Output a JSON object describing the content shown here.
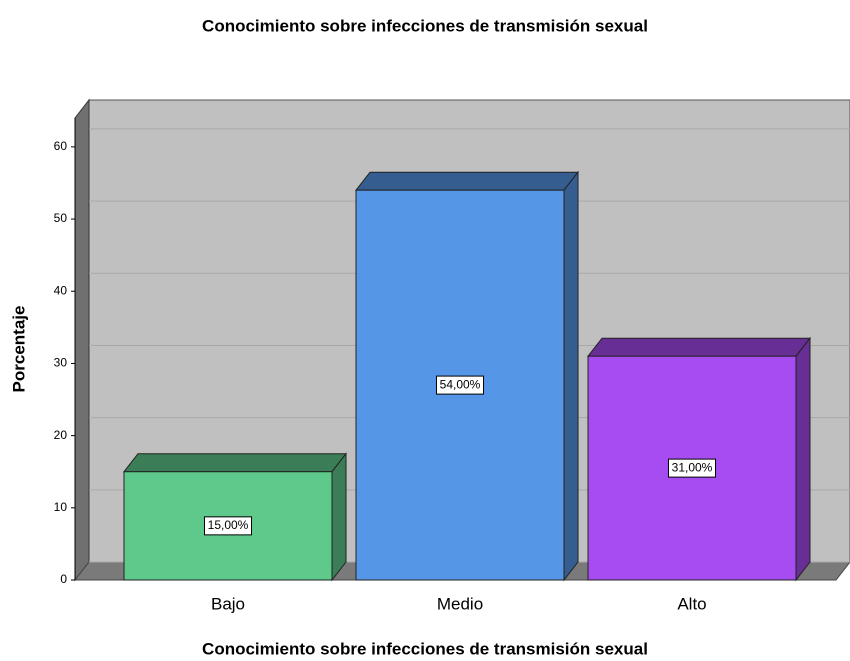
{
  "chart_data": {
    "type": "bar3d",
    "title": "Conocimiento sobre infecciones de transmisión sexual",
    "x_label": "Conocimiento sobre infecciones de transmisión sexual",
    "y_label": "Porcentaje",
    "categories": [
      "Bajo",
      "Medio",
      "Alto"
    ],
    "values": [
      15,
      54,
      31
    ],
    "value_labels": [
      "15,00%",
      "54,00%",
      "31,00%"
    ],
    "colors": [
      "#5ec98a",
      "#5596e6",
      "#a64cf0"
    ],
    "ylim": [
      0,
      64
    ],
    "yticks": [
      0,
      10,
      20,
      30,
      40,
      50,
      60
    ],
    "grid": true
  }
}
